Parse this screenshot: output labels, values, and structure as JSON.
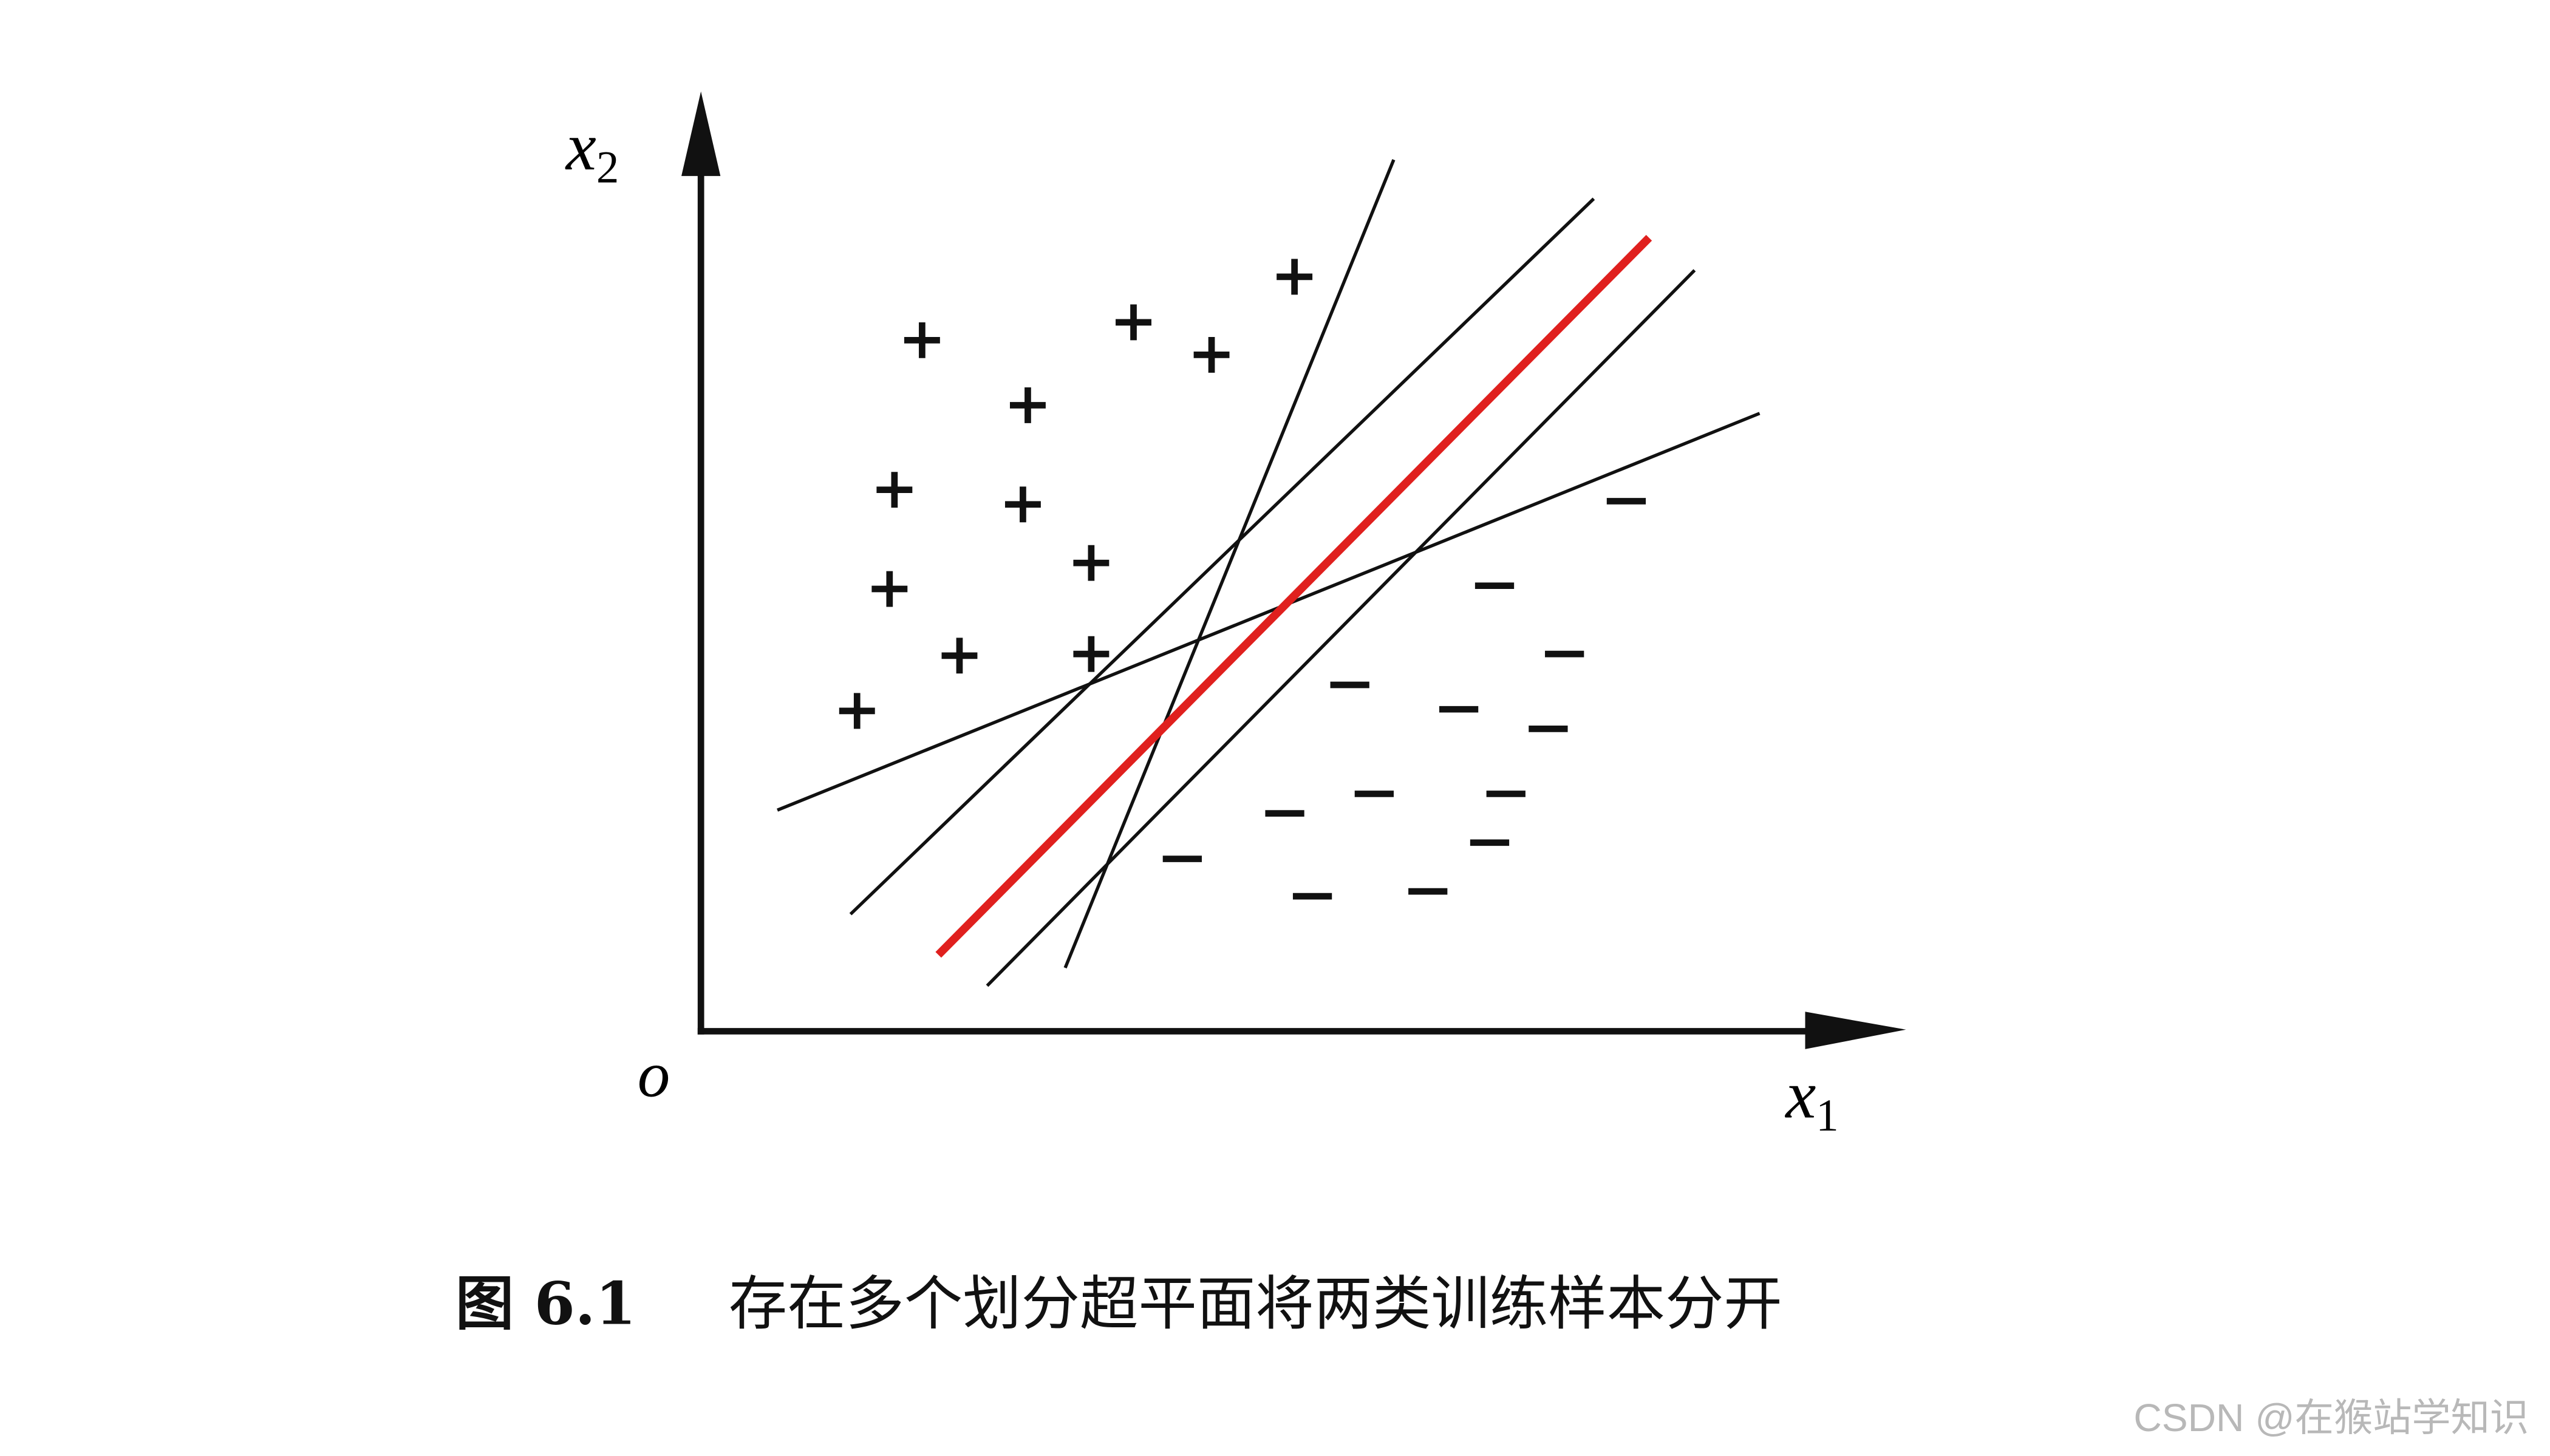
{
  "axes": {
    "y_label": {
      "base": "x",
      "subscript": "2"
    },
    "x_label": {
      "base": "x",
      "subscript": "1"
    },
    "origin": "o"
  },
  "caption": {
    "number": "图 6.1",
    "text": "存在多个划分超平面将两类训练样本分开"
  },
  "watermark": "CSDN @在猴站学知识"
}
